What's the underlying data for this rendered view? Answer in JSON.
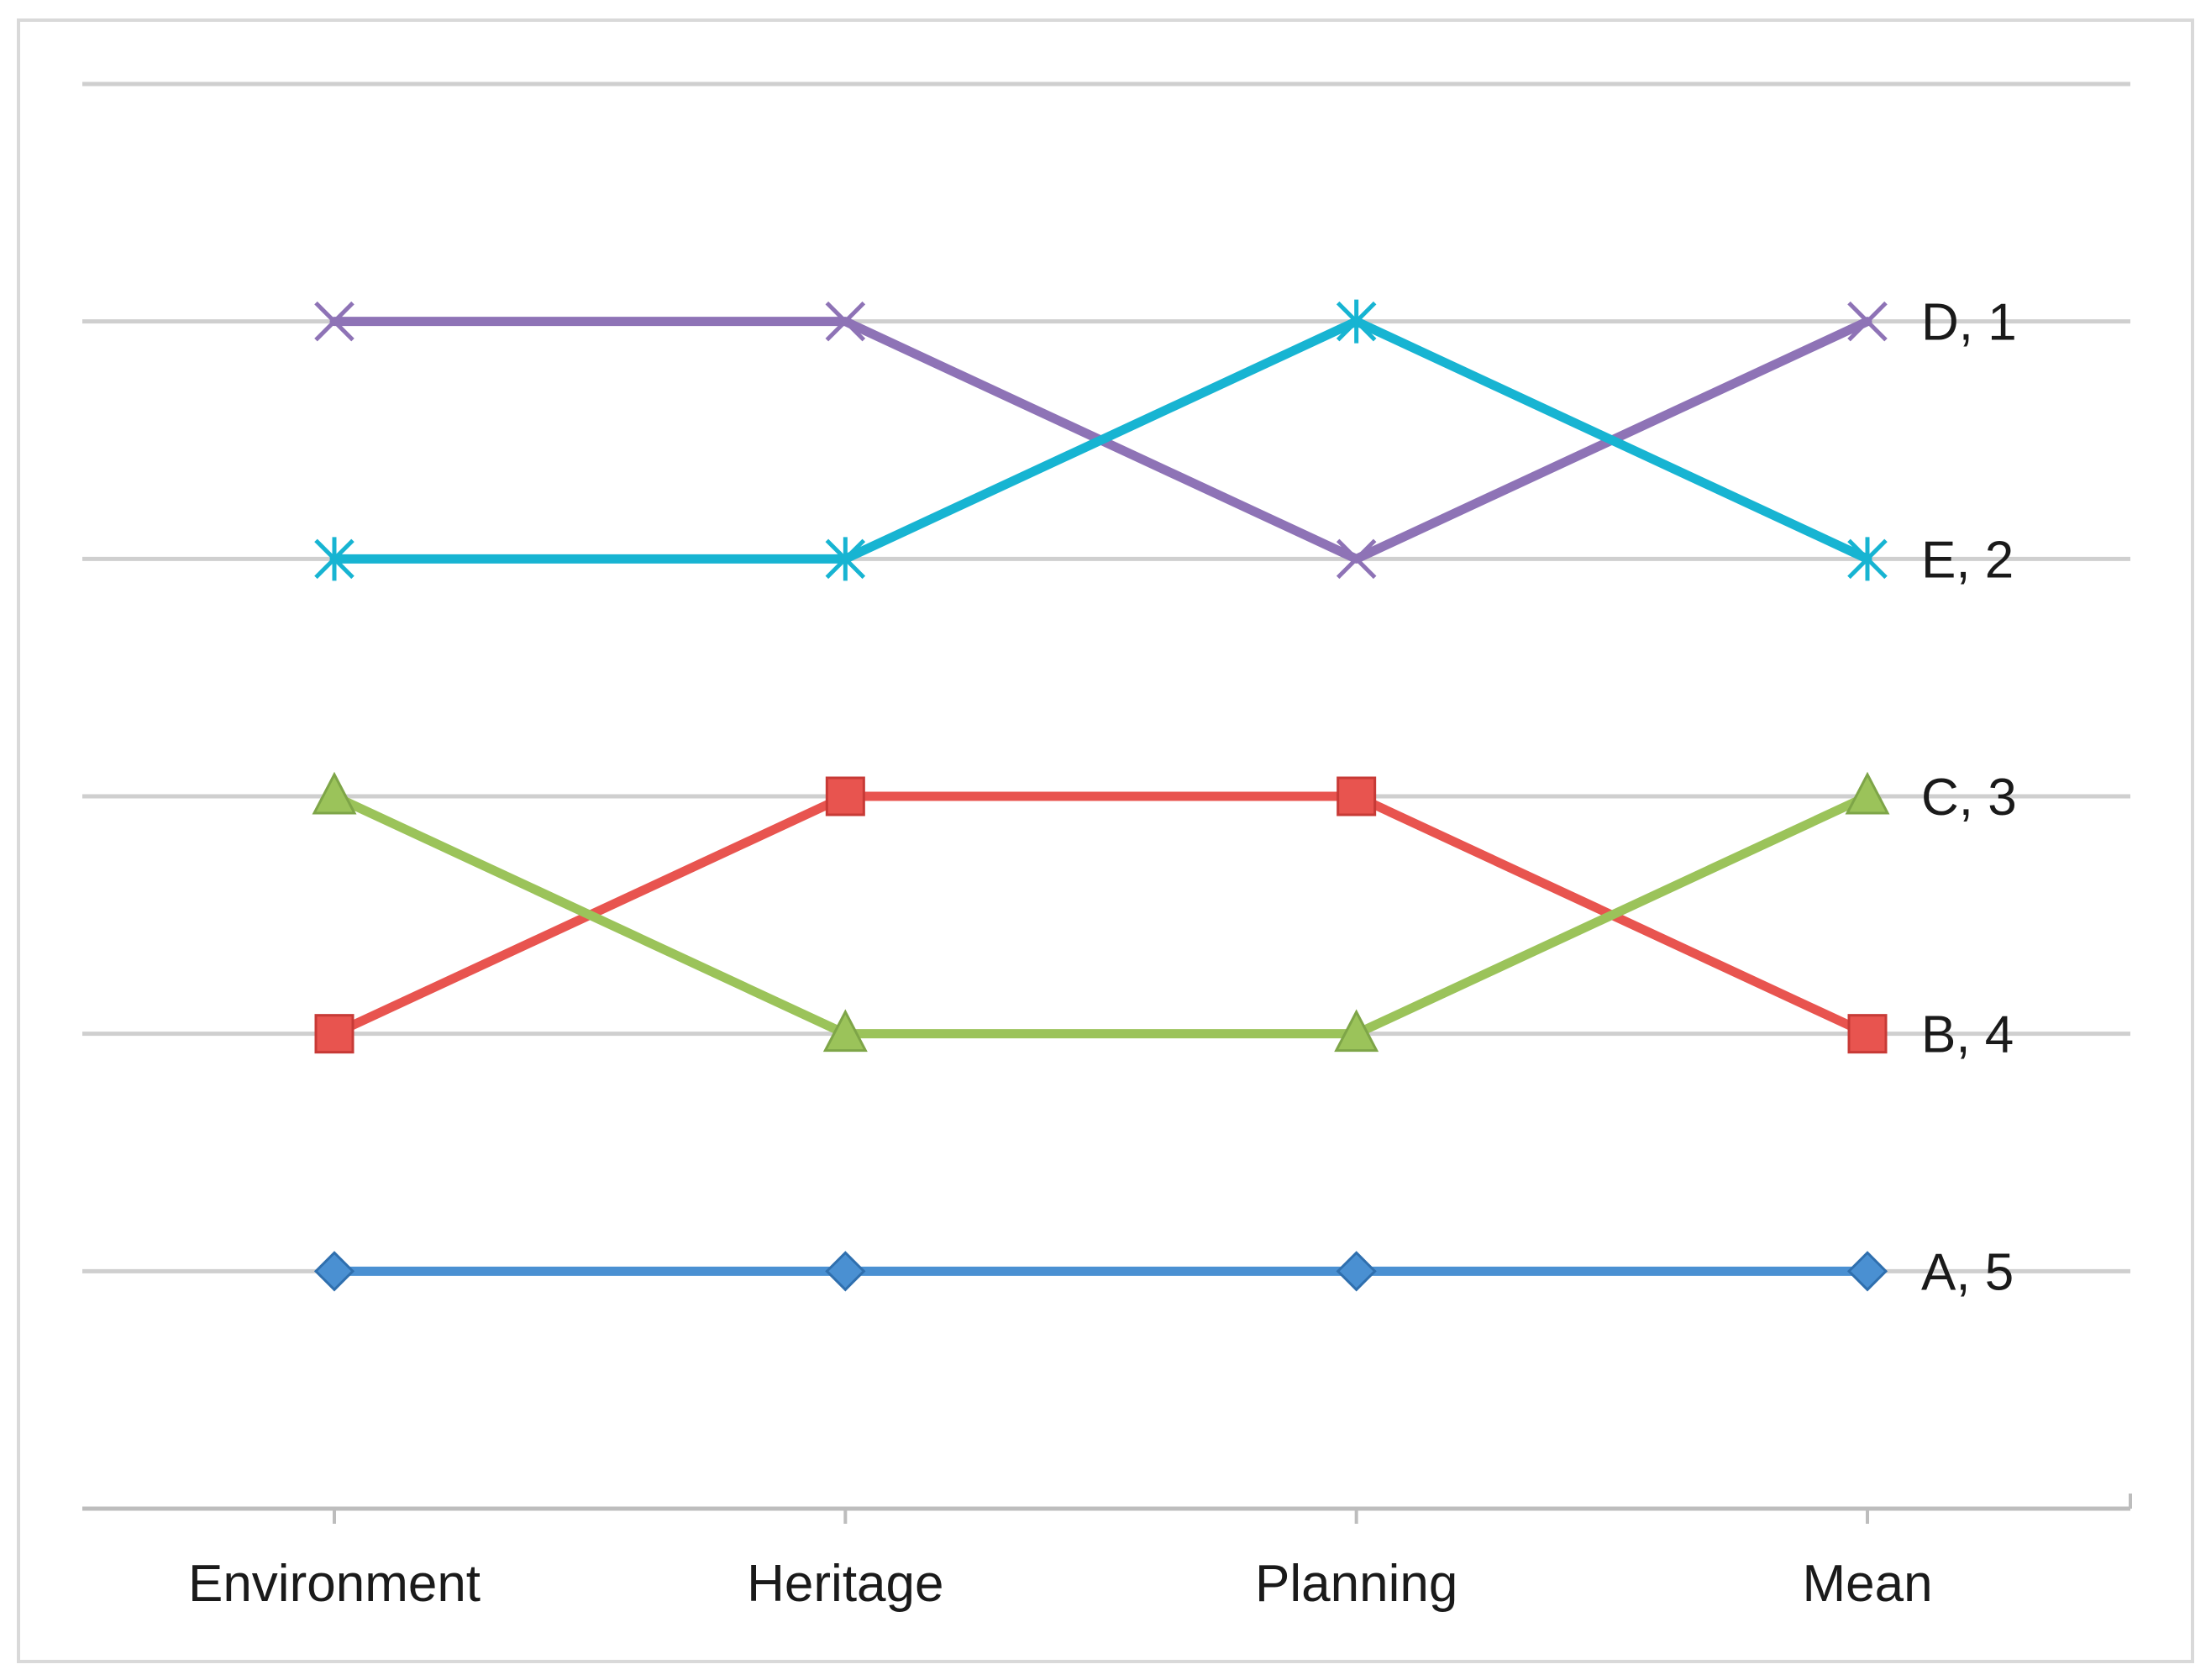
{
  "chart_data": {
    "type": "line",
    "categories": [
      "Environment",
      "Heritage",
      "Planning",
      "Mean"
    ],
    "ylim": [
      0,
      6
    ],
    "y_inverted": true,
    "grid": true,
    "legend": "none (series labelled at right end)",
    "series": [
      {
        "name": "A",
        "end_label": "A, 5",
        "color": "#4a90d2",
        "marker": "diamond",
        "values": [
          5,
          5,
          5,
          5
        ]
      },
      {
        "name": "B",
        "end_label": "B, 4",
        "color": "#e8544f",
        "marker": "square",
        "values": [
          4,
          3,
          3,
          4
        ]
      },
      {
        "name": "C",
        "end_label": "C, 3",
        "color": "#9bc35a",
        "marker": "triangle",
        "values": [
          3,
          4,
          4,
          3
        ]
      },
      {
        "name": "D",
        "end_label": "D, 1",
        "color": "#8e73b6",
        "marker": "x",
        "values": [
          1,
          1,
          2,
          1
        ]
      },
      {
        "name": "E",
        "end_label": "E, 2",
        "color": "#17b4d2",
        "marker": "star",
        "values": [
          2,
          2,
          1,
          2
        ]
      }
    ],
    "title": "",
    "xlabel": "",
    "ylabel": ""
  }
}
